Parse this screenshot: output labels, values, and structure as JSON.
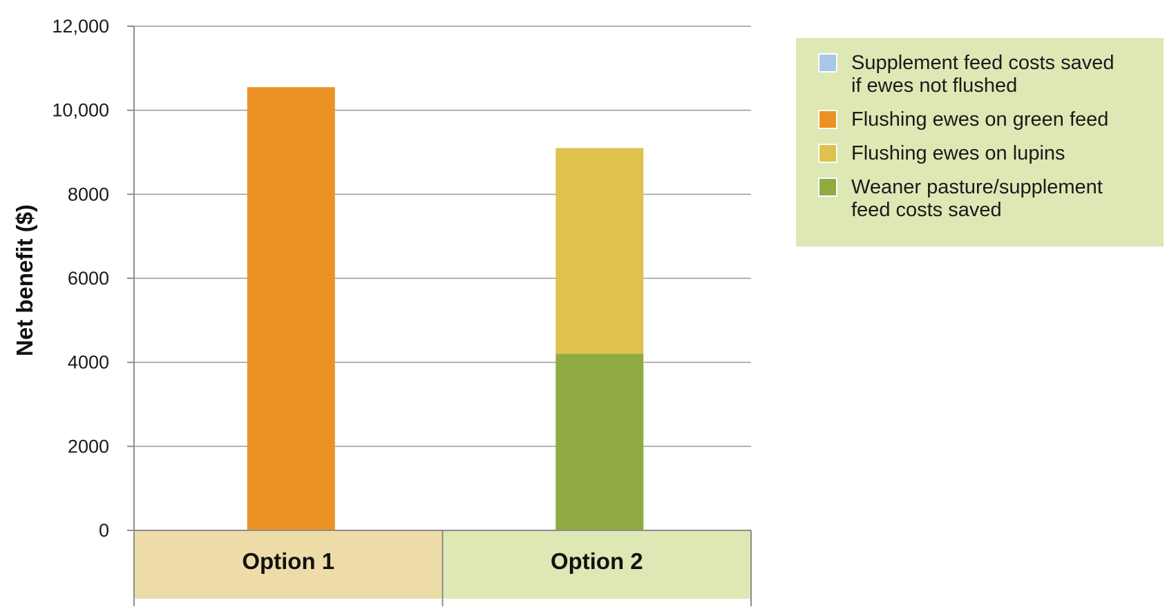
{
  "chart_data": {
    "type": "bar",
    "stacked": true,
    "categories": [
      "Option 1",
      "Option 2"
    ],
    "category_backgrounds": [
      "#eedca8",
      "#dde8b5"
    ],
    "ylabel": "Net benefit ($)",
    "ylim": [
      0,
      12000
    ],
    "yticks": [
      0,
      2000,
      4000,
      6000,
      8000,
      10000,
      12000
    ],
    "ytick_labels": [
      "0",
      "2000",
      "4000",
      "6000",
      "8000",
      "10,000",
      "12,000"
    ],
    "grid": true,
    "legend_position": "top-right",
    "legend_background": "#dde8b5",
    "series": [
      {
        "name": "Supplement feed costs saved\nif ewes not flushed",
        "color": "#a9c7e8",
        "values": [
          0,
          0
        ]
      },
      {
        "name": "Flushing ewes on green feed",
        "color": "#ec9224",
        "values": [
          10550,
          0
        ]
      },
      {
        "name": "Flushing ewes on lupins",
        "color": "#dfc24e",
        "values": [
          0,
          4900
        ]
      },
      {
        "name": "Weaner pasture/supplement\nfeed costs saved",
        "color": "#8fab42",
        "values": [
          0,
          4200
        ]
      }
    ],
    "stack_order": [
      3,
      2,
      1,
      0
    ]
  }
}
